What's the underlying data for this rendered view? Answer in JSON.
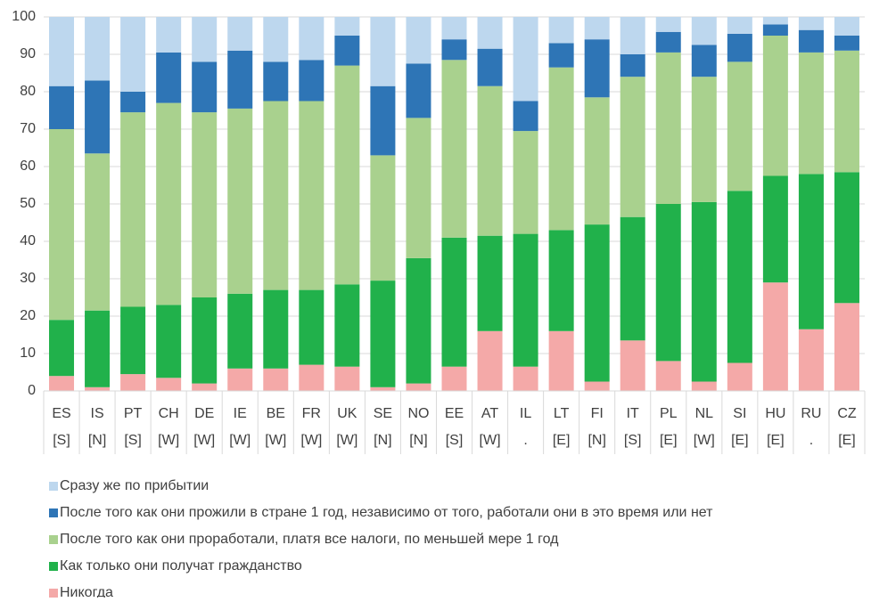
{
  "chart_data": {
    "type": "stacked-bar",
    "categories": [
      "ES",
      "IS",
      "PT",
      "CH",
      "DE",
      "IE",
      "BE",
      "FR",
      "UK",
      "SE",
      "NO",
      "EE",
      "AT",
      "IL",
      "LT",
      "FI",
      "IT",
      "PL",
      "NL",
      "SI",
      "HU",
      "RU",
      "CZ"
    ],
    "category_sublabels": [
      "[S]",
      "[N]",
      "[S]",
      "[W]",
      "[W]",
      "[W]",
      "[W]",
      "[W]",
      "[W]",
      "[N]",
      "[N]",
      "[S]",
      "[W]",
      ".",
      "[E]",
      "[N]",
      "[S]",
      "[E]",
      "[W]",
      "[E]",
      "[E]",
      ".",
      "[E]"
    ],
    "series": [
      {
        "name": "Сразу же по прибытии",
        "color": "#bdd7ee",
        "values": [
          18.5,
          17,
          20,
          9.5,
          12,
          9,
          12,
          11.5,
          5,
          18.5,
          12.5,
          6,
          8.5,
          22.5,
          7,
          6,
          10,
          4,
          7.5,
          4.5,
          2,
          3.5,
          5
        ]
      },
      {
        "name": "После того как они прожили в стране 1 год, независимо от того, работали они в это время или нет",
        "color": "#2e75b6",
        "values": [
          11.5,
          19.5,
          5.5,
          13.5,
          13.5,
          15.5,
          10.5,
          11,
          8,
          18.5,
          14.5,
          5.5,
          10,
          8,
          6.5,
          15.5,
          6,
          5.5,
          8.5,
          7.5,
          3,
          6,
          4
        ]
      },
      {
        "name": "После того как они проработали, платя все налоги, по меньшей мере 1 год",
        "color": "#a9d18e",
        "values": [
          51,
          42,
          52,
          54,
          49.5,
          49.5,
          50.5,
          50.5,
          58.5,
          33.5,
          37.5,
          47.5,
          40,
          27.5,
          43.5,
          34,
          37.5,
          40.5,
          33.5,
          34.5,
          37.5,
          32.5,
          32.5
        ]
      },
      {
        "name": "Как только они получат гражданство",
        "color": "#21b14b",
        "values": [
          15,
          20.5,
          18,
          19.5,
          23,
          20,
          21,
          20,
          22,
          28.5,
          33.5,
          34.5,
          25.5,
          35.5,
          27,
          42,
          33,
          42,
          48,
          46,
          28.5,
          41.5,
          35
        ]
      },
      {
        "name": "Никогда",
        "color": "#f4a9a8",
        "values": [
          4,
          1,
          4.5,
          3.5,
          2,
          6,
          6,
          7,
          6.5,
          1,
          2,
          6.5,
          16,
          6.5,
          16,
          2.5,
          13.5,
          8,
          2.5,
          7.5,
          29,
          16.5,
          23.5
        ]
      }
    ],
    "ylim": [
      0,
      100
    ],
    "yticks": [
      0,
      10,
      20,
      30,
      40,
      50,
      60,
      70,
      80,
      90,
      100
    ],
    "grid": true
  }
}
